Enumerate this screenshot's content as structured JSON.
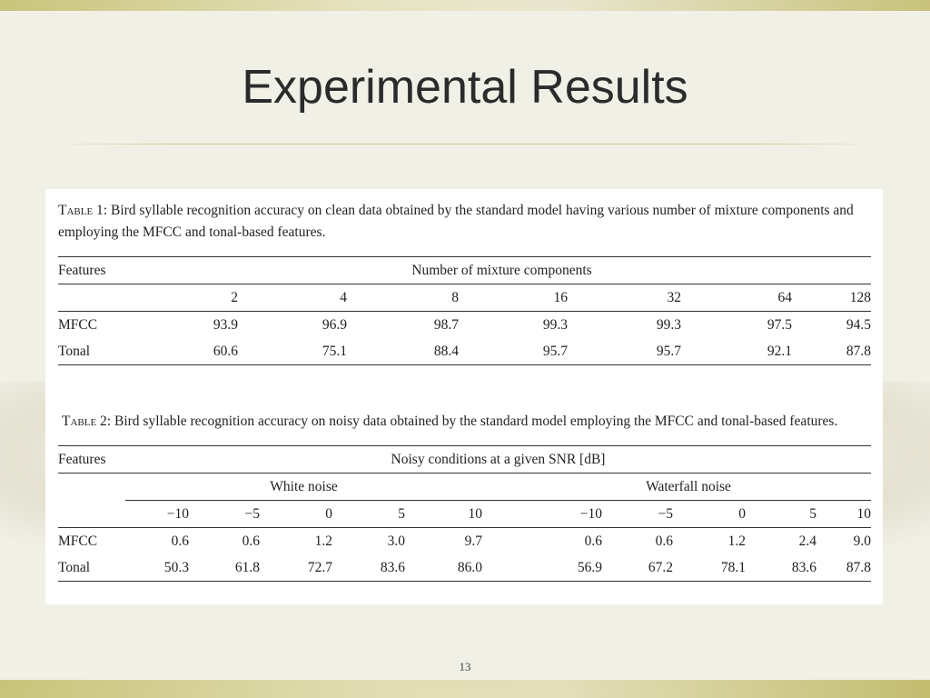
{
  "slide": {
    "title": "Experimental Results",
    "page_number": "13"
  },
  "table1": {
    "caption_label": "Table 1:",
    "caption_text": "Bird syllable recognition accuracy on clean data obtained by the standard model having various number of mixture components and employing the MFCC and tonal-based features.",
    "header_left": "Features",
    "header_span": "Number of mixture components",
    "columns": [
      "2",
      "4",
      "8",
      "16",
      "32",
      "64",
      "128"
    ],
    "rows": [
      {
        "label": "MFCC",
        "values": [
          "93.9",
          "96.9",
          "98.7",
          "99.3",
          "99.3",
          "97.5",
          "94.5"
        ]
      },
      {
        "label": "Tonal",
        "values": [
          "60.6",
          "75.1",
          "88.4",
          "95.7",
          "95.7",
          "92.1",
          "87.8"
        ]
      }
    ]
  },
  "table2": {
    "caption_label": "Table 2:",
    "caption_text": "Bird syllable recognition accuracy on noisy data obtained by the standard model employing the MFCC and tonal-based features.",
    "header_left": "Features",
    "header_span": "Noisy conditions at a given SNR [dB]",
    "group1": "White noise",
    "group2": "Waterfall noise",
    "columns": [
      "−10",
      "−5",
      "0",
      "5",
      "10",
      "−10",
      "−5",
      "0",
      "5",
      "10"
    ],
    "rows": [
      {
        "label": "MFCC",
        "values": [
          "0.6",
          "0.6",
          "1.2",
          "3.0",
          "9.7",
          "0.6",
          "0.6",
          "1.2",
          "2.4",
          "9.0"
        ]
      },
      {
        "label": "Tonal",
        "values": [
          "50.3",
          "61.8",
          "72.7",
          "83.6",
          "86.0",
          "56.9",
          "67.2",
          "78.1",
          "83.6",
          "87.8"
        ]
      }
    ]
  }
}
